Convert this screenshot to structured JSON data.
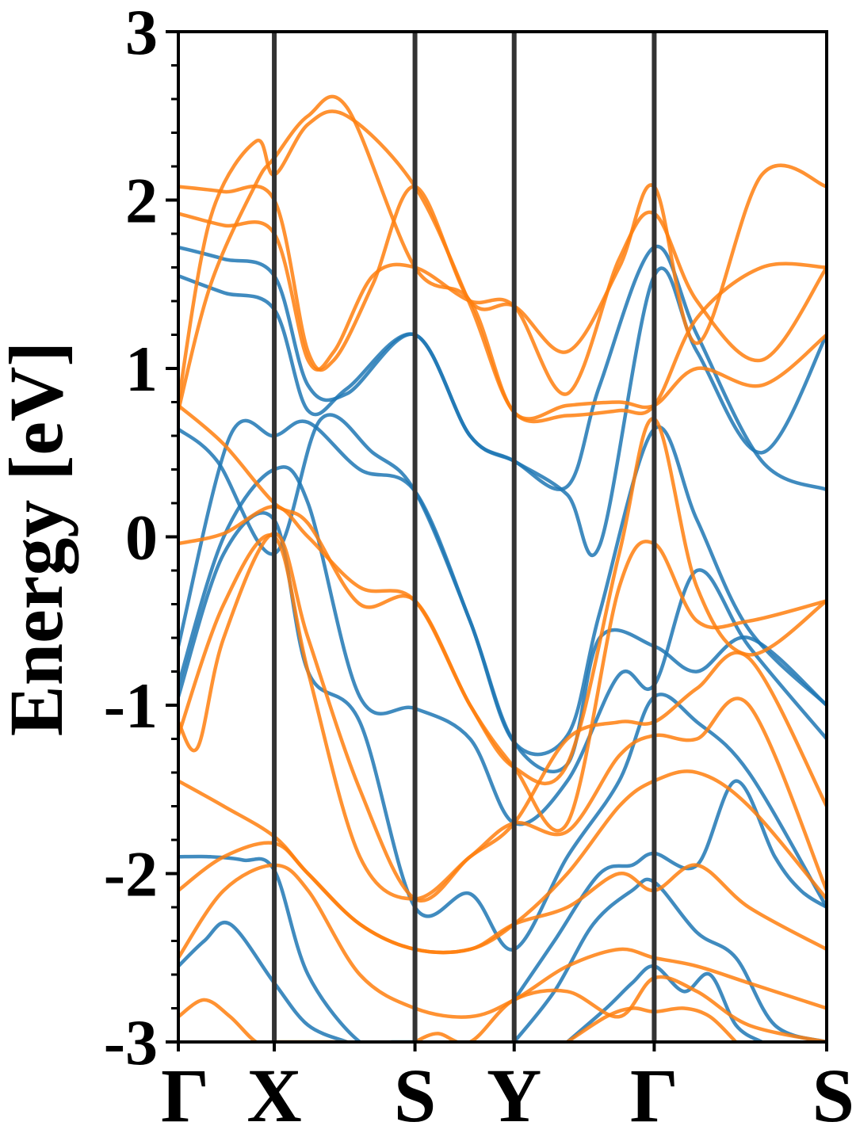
{
  "chart_data": {
    "type": "line",
    "ylabel": "Energy [eV]",
    "ylim": [
      -3,
      3
    ],
    "yticks": [
      3,
      2,
      1,
      0,
      -1,
      -2,
      -3
    ],
    "ytick_labels": [
      "3",
      "2",
      "1",
      "0",
      "-1",
      "-2",
      "-3"
    ],
    "kpath": [
      "Γ",
      "X",
      "S",
      "Y",
      "Γ",
      "S"
    ],
    "kpath_positions": [
      0,
      0.148,
      0.365,
      0.518,
      0.734,
      1.0
    ],
    "grid": false,
    "legend": "none",
    "colors": {
      "spin_up": "#1f77b4",
      "spin_down": "#ff7f0e",
      "frame": "#000000",
      "kline": "#333333"
    },
    "series": [
      {
        "spin": "up",
        "x": [
          0,
          0.07,
          0.148,
          0.2,
          0.26,
          0.365,
          0.45,
          0.518,
          0.6,
          0.65,
          0.734,
          0.8,
          0.9,
          1.0
        ],
        "y": [
          1.72,
          1.65,
          1.55,
          0.9,
          0.85,
          1.2,
          0.6,
          0.45,
          0.3,
          0.9,
          1.72,
          1.2,
          0.45,
          0.28
        ]
      },
      {
        "spin": "up",
        "x": [
          0,
          0.07,
          0.148,
          0.2,
          0.26,
          0.365,
          0.45,
          0.518,
          0.6,
          0.65,
          0.734,
          0.8,
          0.9,
          1.0
        ],
        "y": [
          1.55,
          1.45,
          1.35,
          0.75,
          0.88,
          1.2,
          0.6,
          0.45,
          0.25,
          -0.05,
          1.55,
          1.1,
          0.5,
          1.2
        ]
      },
      {
        "spin": "up",
        "x": [
          0,
          0.06,
          0.148,
          0.22,
          0.3,
          0.365,
          0.45,
          0.518,
          0.6,
          0.65,
          0.734,
          0.8,
          0.88,
          1.0
        ],
        "y": [
          0.64,
          0.45,
          -0.1,
          0.7,
          0.5,
          0.27,
          -0.5,
          -1.22,
          -1.18,
          -0.45,
          0.64,
          0.1,
          -0.55,
          -1.0
        ]
      },
      {
        "spin": "up",
        "x": [
          0,
          0.08,
          0.148,
          0.2,
          0.28,
          0.365,
          0.45,
          0.518,
          0.6,
          0.65,
          0.734,
          0.8,
          0.88,
          1.0
        ],
        "y": [
          -0.65,
          0.6,
          0.6,
          0.68,
          0.4,
          0.27,
          -0.5,
          -1.22,
          -1.35,
          -0.6,
          -0.65,
          -0.8,
          -0.6,
          -1.0
        ]
      },
      {
        "spin": "up",
        "x": [
          0,
          0.07,
          0.148,
          0.2,
          0.28,
          0.365,
          0.45,
          0.518,
          0.6,
          0.68,
          0.734,
          0.8,
          0.88,
          1.0
        ],
        "y": [
          -0.88,
          0.0,
          0.4,
          0.2,
          -0.95,
          -1.02,
          -1.2,
          -1.7,
          -1.45,
          -0.82,
          -0.88,
          -0.2,
          -0.65,
          -1.2
        ]
      },
      {
        "spin": "up",
        "x": [
          0,
          0.07,
          0.148,
          0.2,
          0.28,
          0.365,
          0.45,
          0.518,
          0.6,
          0.68,
          0.734,
          0.8,
          0.88,
          1.0
        ],
        "y": [
          -0.95,
          -0.1,
          0.1,
          -0.8,
          -1.1,
          -2.2,
          -2.12,
          -2.45,
          -1.9,
          -1.45,
          -0.95,
          -1.1,
          -1.4,
          -2.2
        ]
      },
      {
        "spin": "up",
        "x": [
          0,
          0.05,
          0.1,
          0.148,
          0.2,
          0.28,
          0.33,
          0.365
        ],
        "y": [
          -1.9,
          -1.9,
          -1.92,
          -1.98,
          -2.6,
          -3.0,
          -3.0,
          -3.0
        ]
      },
      {
        "spin": "up",
        "x": [
          0,
          0.04,
          0.08,
          0.148,
          0.2,
          0.26
        ],
        "y": [
          -2.55,
          -2.4,
          -2.3,
          -2.65,
          -2.9,
          -3.0
        ]
      },
      {
        "spin": "up",
        "x": [
          0.518,
          0.58,
          0.65,
          0.7,
          0.734,
          0.8,
          0.86,
          0.92,
          0.96,
          1.0
        ],
        "y": [
          -2.75,
          -2.4,
          -2.0,
          -1.95,
          -1.88,
          -1.95,
          -1.45,
          -1.9,
          -2.1,
          -2.2
        ]
      },
      {
        "spin": "up",
        "x": [
          0.518,
          0.58,
          0.64,
          0.7,
          0.734,
          0.8,
          0.86,
          0.92,
          1.0
        ],
        "y": [
          -3.0,
          -2.7,
          -2.3,
          -2.1,
          -2.05,
          -2.35,
          -2.5,
          -2.9,
          -3.0
        ]
      },
      {
        "spin": "up",
        "x": [
          0.6,
          0.66,
          0.7,
          0.734,
          0.78,
          0.82,
          0.86,
          0.9
        ],
        "y": [
          -3.0,
          -2.8,
          -2.65,
          -2.55,
          -2.7,
          -2.6,
          -2.9,
          -3.0
        ]
      },
      {
        "spin": "down",
        "x": [
          0,
          0.07,
          0.148,
          0.2,
          0.24,
          0.3,
          0.365,
          0.45,
          0.518,
          0.6,
          0.68,
          0.734,
          0.8,
          0.9,
          1.0
        ],
        "y": [
          2.08,
          2.05,
          2.0,
          1.1,
          1.05,
          1.5,
          2.08,
          1.4,
          1.37,
          1.1,
          1.6,
          2.08,
          1.15,
          2.15,
          2.08
        ]
      },
      {
        "spin": "down",
        "x": [
          0,
          0.07,
          0.148,
          0.2,
          0.24,
          0.3,
          0.365,
          0.45,
          0.518,
          0.6,
          0.68,
          0.734,
          0.8,
          0.9,
          1.0
        ],
        "y": [
          1.92,
          1.85,
          1.8,
          1.05,
          1.1,
          1.55,
          1.6,
          1.4,
          1.37,
          0.85,
          1.65,
          1.92,
          1.4,
          1.05,
          1.6
        ]
      },
      {
        "spin": "down",
        "x": [
          0,
          0.05,
          0.12,
          0.148,
          0.2,
          0.26,
          0.365,
          0.45,
          0.518,
          0.6,
          0.68,
          0.734,
          0.8,
          0.9,
          1.0
        ],
        "y": [
          0.8,
          1.9,
          2.35,
          2.15,
          2.45,
          2.5,
          2.08,
          1.38,
          0.74,
          0.72,
          0.75,
          0.78,
          1.3,
          1.6,
          1.6
        ]
      },
      {
        "spin": "down",
        "x": [
          0,
          0.05,
          0.12,
          0.148,
          0.2,
          0.26,
          0.365,
          0.45,
          0.518,
          0.6,
          0.68,
          0.734,
          0.8,
          0.9,
          1.0
        ],
        "y": [
          0.75,
          1.5,
          2.1,
          2.25,
          2.5,
          2.55,
          1.6,
          1.4,
          0.74,
          0.78,
          0.8,
          0.78,
          1.0,
          0.9,
          1.2
        ]
      },
      {
        "spin": "down",
        "x": [
          0,
          0.07,
          0.148,
          0.2,
          0.28,
          0.365,
          0.45,
          0.518,
          0.6,
          0.68,
          0.734,
          0.8,
          0.88,
          1.0
        ],
        "y": [
          0.78,
          0.55,
          0.2,
          0.08,
          -0.4,
          -0.38,
          -1.0,
          -1.37,
          -1.35,
          -0.1,
          0.7,
          -0.3,
          -0.7,
          -0.38
        ]
      },
      {
        "spin": "down",
        "x": [
          0,
          0.07,
          0.148,
          0.2,
          0.28,
          0.365,
          0.45,
          0.518,
          0.6,
          0.68,
          0.734,
          0.8,
          0.88,
          1.0
        ],
        "y": [
          -0.04,
          0.02,
          0.18,
          0.0,
          -0.3,
          -0.38,
          -1.0,
          -1.37,
          -1.7,
          -0.3,
          -0.04,
          -0.5,
          -0.5,
          -0.38
        ]
      },
      {
        "spin": "down",
        "x": [
          0,
          0.03,
          0.07,
          0.148,
          0.2,
          0.28,
          0.365,
          0.45,
          0.518,
          0.6,
          0.68,
          0.734,
          0.8,
          0.88,
          1.0
        ],
        "y": [
          -1.1,
          -1.25,
          -0.6,
          0.02,
          -0.6,
          -1.5,
          -2.15,
          -1.9,
          -1.7,
          -1.2,
          -1.1,
          -1.1,
          -0.9,
          -0.72,
          -1.6
        ]
      },
      {
        "spin": "down",
        "x": [
          0,
          0.07,
          0.148,
          0.2,
          0.28,
          0.365,
          0.45,
          0.518,
          0.6,
          0.68,
          0.734,
          0.8,
          0.88,
          1.0
        ],
        "y": [
          -1.18,
          -0.4,
          0.0,
          -0.8,
          -1.9,
          -2.15,
          -1.9,
          -1.7,
          -1.75,
          -1.3,
          -1.18,
          -1.2,
          -1.0,
          -2.1
        ]
      },
      {
        "spin": "down",
        "x": [
          0,
          0.07,
          0.148,
          0.2,
          0.28,
          0.365,
          0.45,
          0.518,
          0.6,
          0.68,
          0.734,
          0.8,
          0.88,
          1.0
        ],
        "y": [
          -1.45,
          -1.6,
          -1.78,
          -2.0,
          -2.3,
          -2.45,
          -2.45,
          -2.3,
          -2.0,
          -1.6,
          -1.45,
          -1.4,
          -1.6,
          -2.15
        ]
      },
      {
        "spin": "down",
        "x": [
          0,
          0.07,
          0.148,
          0.2,
          0.28,
          0.365,
          0.45,
          0.518,
          0.6,
          0.68,
          0.734,
          0.8,
          0.88,
          1.0
        ],
        "y": [
          -2.1,
          -1.9,
          -1.82,
          -2.0,
          -2.3,
          -2.45,
          -2.45,
          -2.3,
          -2.2,
          -2.0,
          -2.1,
          -1.95,
          -2.2,
          -2.45
        ]
      },
      {
        "spin": "down",
        "x": [
          0,
          0.07,
          0.148,
          0.2,
          0.28,
          0.365,
          0.45,
          0.518,
          0.6,
          0.68,
          0.734,
          0.8,
          0.88,
          1.0
        ],
        "y": [
          -2.5,
          -2.1,
          -1.95,
          -2.1,
          -2.6,
          -2.8,
          -2.85,
          -2.75,
          -2.55,
          -2.45,
          -2.5,
          -2.55,
          -2.65,
          -2.8
        ]
      },
      {
        "spin": "down",
        "x": [
          0,
          0.04,
          0.08,
          0.12,
          0.148,
          0.2,
          0.26
        ],
        "y": [
          -2.85,
          -2.75,
          -2.85,
          -3.0,
          -3.0,
          -3.0,
          -3.0
        ]
      },
      {
        "spin": "down",
        "x": [
          0.365,
          0.4,
          0.45,
          0.518,
          0.6,
          0.68,
          0.734,
          0.8,
          0.88,
          1.0
        ],
        "y": [
          -3.0,
          -2.95,
          -3.0,
          -2.75,
          -2.7,
          -2.85,
          -2.62,
          -2.7,
          -2.9,
          -3.0
        ]
      },
      {
        "spin": "down",
        "x": [
          0.6,
          0.66,
          0.7,
          0.734,
          0.78,
          0.82,
          0.86
        ],
        "y": [
          -3.0,
          -2.85,
          -2.8,
          -2.82,
          -2.8,
          -2.85,
          -3.0
        ]
      }
    ]
  }
}
